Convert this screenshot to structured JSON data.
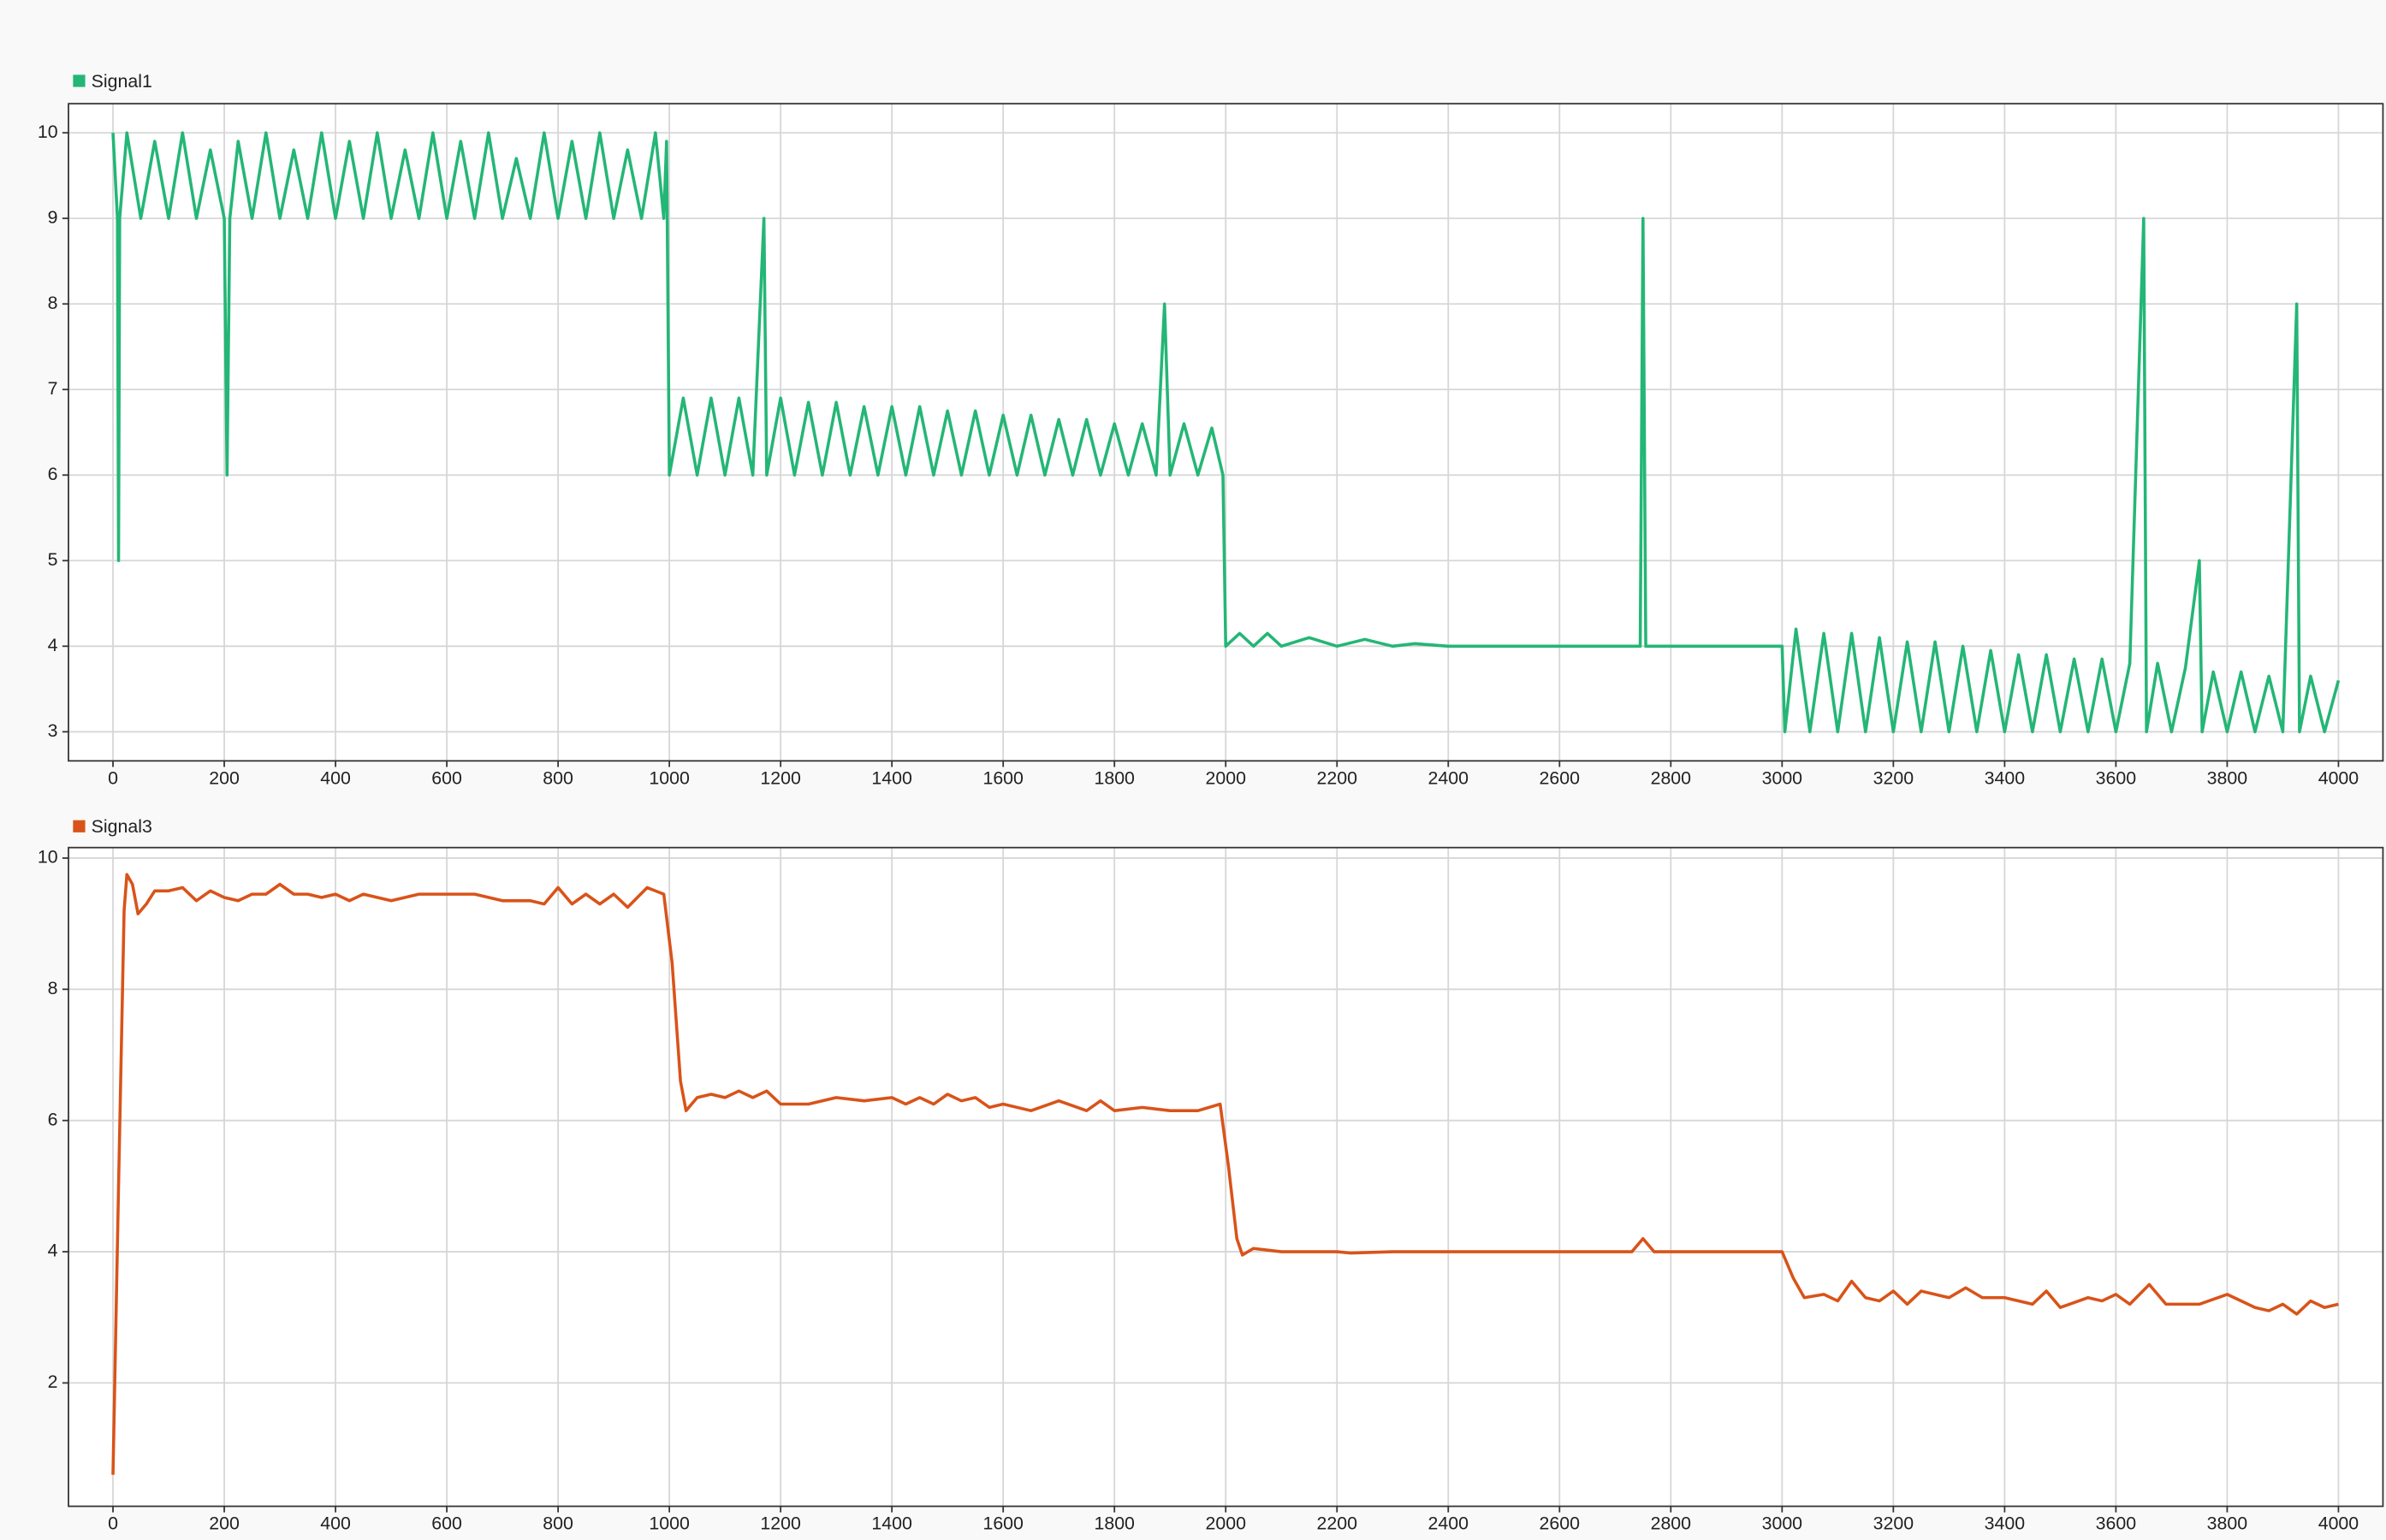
{
  "chart_data": [
    {
      "type": "line",
      "x": [
        0,
        8,
        10,
        12,
        25,
        50,
        75,
        100,
        125,
        150,
        175,
        200,
        205,
        210,
        225,
        250,
        275,
        300,
        325,
        350,
        375,
        400,
        425,
        450,
        475,
        500,
        525,
        550,
        575,
        600,
        625,
        650,
        675,
        700,
        725,
        750,
        775,
        800,
        825,
        850,
        875,
        900,
        925,
        950,
        975,
        990,
        995,
        1000,
        1025,
        1050,
        1075,
        1100,
        1125,
        1150,
        1170,
        1175,
        1200,
        1225,
        1250,
        1275,
        1300,
        1325,
        1350,
        1375,
        1400,
        1425,
        1450,
        1475,
        1500,
        1525,
        1550,
        1575,
        1600,
        1625,
        1650,
        1675,
        1700,
        1725,
        1750,
        1775,
        1800,
        1825,
        1850,
        1875,
        1890,
        1900,
        1925,
        1950,
        1975,
        1995,
        2000,
        2025,
        2050,
        2075,
        2100,
        2150,
        2200,
        2250,
        2300,
        2340,
        2400,
        2745,
        2750,
        2755,
        3000,
        3005,
        3025,
        3050,
        3075,
        3100,
        3125,
        3150,
        3175,
        3200,
        3225,
        3250,
        3275,
        3300,
        3325,
        3350,
        3375,
        3400,
        3425,
        3450,
        3475,
        3500,
        3525,
        3550,
        3575,
        3600,
        3625,
        3650,
        3655,
        3675,
        3700,
        3725,
        3750,
        3755,
        3775,
        3800,
        3825,
        3850,
        3875,
        3900,
        3925,
        3930,
        3950,
        3975,
        4000
      ],
      "series": [
        {
          "name": "Signal1",
          "color": "#24b676",
          "values": [
            10,
            9,
            5,
            9,
            10,
            9,
            9.9,
            9,
            10,
            9,
            9.8,
            9,
            6,
            9,
            9.9,
            9,
            10,
            9,
            9.8,
            9,
            10,
            9,
            9.9,
            9,
            10,
            9,
            9.8,
            9,
            10,
            9,
            9.9,
            9,
            10,
            9,
            9.7,
            9,
            10,
            9,
            9.9,
            9,
            10,
            9,
            9.8,
            9,
            10,
            9,
            9.9,
            6,
            6.9,
            6,
            6.9,
            6,
            6.9,
            6,
            9,
            6,
            6.9,
            6,
            6.85,
            6,
            6.85,
            6,
            6.8,
            6,
            6.8,
            6,
            6.8,
            6,
            6.75,
            6,
            6.75,
            6,
            6.7,
            6,
            6.7,
            6,
            6.65,
            6,
            6.65,
            6,
            6.6,
            6,
            6.6,
            6,
            8,
            6,
            6.6,
            6,
            6.55,
            6,
            4,
            4.15,
            4,
            4.15,
            4,
            4.1,
            4,
            4.08,
            4,
            4.03,
            4,
            4,
            9,
            4,
            4,
            3,
            4.2,
            3,
            4.15,
            3,
            4.15,
            3,
            4.1,
            3,
            4.05,
            3,
            4.05,
            3,
            4,
            3,
            3.95,
            3,
            3.9,
            3,
            3.9,
            3,
            3.85,
            3,
            3.85,
            3,
            3.8,
            9,
            3,
            3.8,
            3,
            3.75,
            5,
            3,
            3.7,
            3,
            3.7,
            3,
            3.65,
            3,
            8,
            3,
            3.65,
            3,
            3.6
          ]
        }
      ],
      "xlim": [
        -80,
        4080
      ],
      "ylim": [
        2.66,
        10.34
      ],
      "xticks": [
        0,
        200,
        400,
        600,
        800,
        1000,
        1200,
        1400,
        1600,
        1800,
        2000,
        2200,
        2400,
        2600,
        2800,
        3000,
        3200,
        3400,
        3600,
        3800,
        4000
      ],
      "yticks": [
        3,
        4,
        5,
        6,
        7,
        8,
        9,
        10
      ],
      "grid": true
    },
    {
      "type": "line",
      "x": [
        0,
        10,
        20,
        25,
        35,
        45,
        60,
        75,
        100,
        125,
        150,
        175,
        200,
        225,
        250,
        275,
        300,
        325,
        350,
        375,
        400,
        425,
        450,
        500,
        550,
        600,
        650,
        700,
        750,
        775,
        800,
        825,
        850,
        875,
        900,
        925,
        960,
        990,
        1005,
        1020,
        1030,
        1050,
        1075,
        1100,
        1125,
        1150,
        1175,
        1200,
        1250,
        1300,
        1350,
        1400,
        1425,
        1450,
        1475,
        1500,
        1525,
        1550,
        1575,
        1600,
        1650,
        1700,
        1750,
        1775,
        1800,
        1850,
        1900,
        1950,
        1990,
        2005,
        2020,
        2030,
        2050,
        2100,
        2200,
        2225,
        2300,
        2500,
        2700,
        2730,
        2750,
        2770,
        2800,
        3000,
        3020,
        3040,
        3075,
        3100,
        3125,
        3150,
        3175,
        3200,
        3225,
        3250,
        3300,
        3330,
        3360,
        3400,
        3450,
        3475,
        3500,
        3550,
        3575,
        3600,
        3625,
        3660,
        3690,
        3750,
        3800,
        3850,
        3875,
        3900,
        3925,
        3950,
        3975,
        4000
      ],
      "series": [
        {
          "name": "Signal3",
          "color": "#d95319",
          "values": [
            0.6,
            5,
            9.2,
            9.75,
            9.6,
            9.15,
            9.3,
            9.5,
            9.5,
            9.55,
            9.35,
            9.5,
            9.4,
            9.35,
            9.45,
            9.45,
            9.6,
            9.45,
            9.45,
            9.4,
            9.45,
            9.35,
            9.45,
            9.35,
            9.45,
            9.45,
            9.45,
            9.35,
            9.35,
            9.3,
            9.55,
            9.3,
            9.45,
            9.3,
            9.45,
            9.25,
            9.55,
            9.45,
            8.4,
            6.6,
            6.15,
            6.35,
            6.4,
            6.35,
            6.45,
            6.35,
            6.45,
            6.25,
            6.25,
            6.35,
            6.3,
            6.35,
            6.25,
            6.35,
            6.25,
            6.4,
            6.3,
            6.35,
            6.2,
            6.25,
            6.15,
            6.3,
            6.15,
            6.3,
            6.15,
            6.2,
            6.15,
            6.15,
            6.25,
            5.3,
            4.2,
            3.95,
            4.05,
            4,
            4,
            3.98,
            4,
            4,
            4,
            4,
            4.2,
            4,
            4,
            4,
            3.6,
            3.3,
            3.35,
            3.25,
            3.55,
            3.3,
            3.25,
            3.4,
            3.2,
            3.4,
            3.3,
            3.45,
            3.3,
            3.3,
            3.2,
            3.4,
            3.15,
            3.3,
            3.25,
            3.35,
            3.2,
            3.5,
            3.2,
            3.2,
            3.35,
            3.15,
            3.1,
            3.2,
            3.05,
            3.25,
            3.15,
            3.2
          ]
        }
      ],
      "xlim": [
        -80,
        4080
      ],
      "ylim": [
        0.12,
        10.16
      ],
      "xticks": [
        0,
        200,
        400,
        600,
        800,
        1000,
        1200,
        1400,
        1600,
        1800,
        2000,
        2200,
        2400,
        2600,
        2800,
        3000,
        3200,
        3400,
        3600,
        3800,
        4000
      ],
      "yticks": [
        2,
        4,
        6,
        8,
        10
      ],
      "grid": true
    }
  ]
}
